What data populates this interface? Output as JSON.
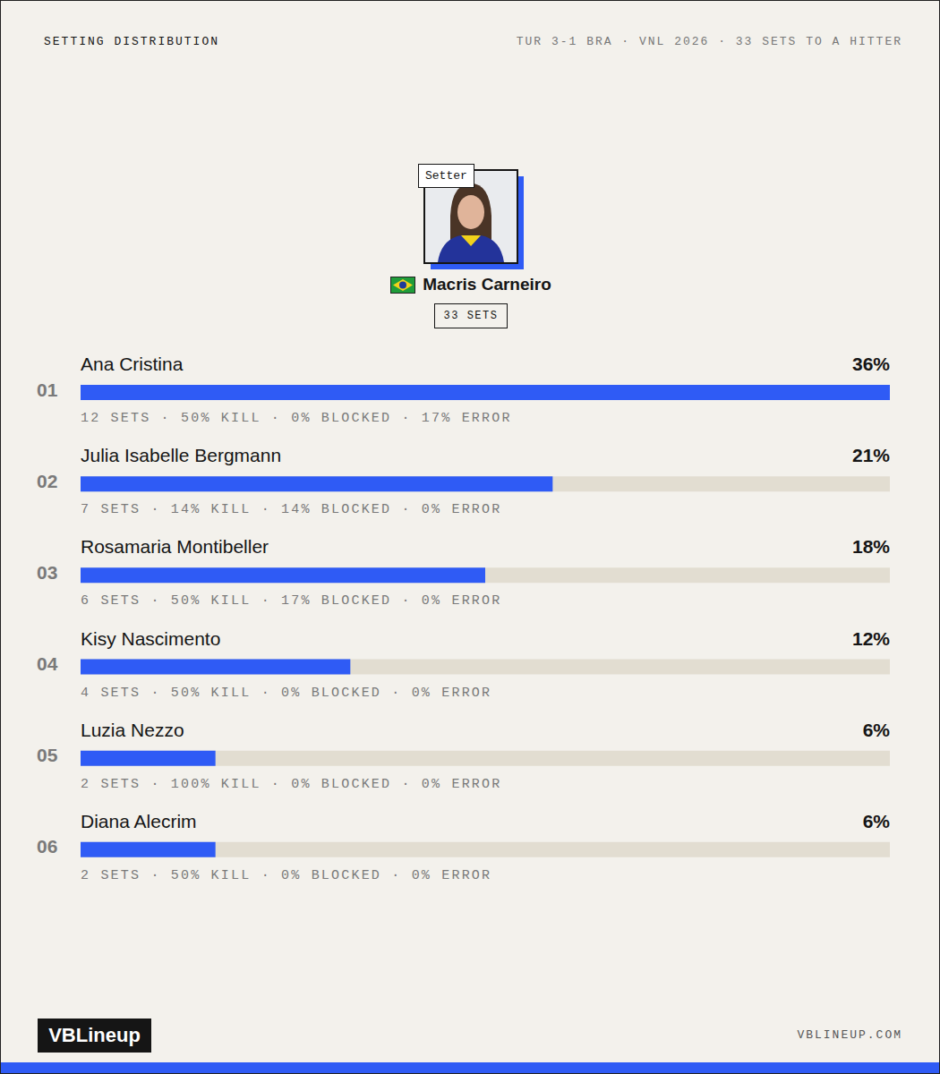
{
  "header": {
    "title": "SETTING DISTRIBUTION",
    "subtitle": "TUR 3-1 BRA · VNL 2026 · 33 SETS TO A HITTER"
  },
  "setter": {
    "badge": "Setter",
    "name": "Macris Carneiro",
    "total": "33 SETS"
  },
  "footer": {
    "brand": "VBLineup",
    "url": "VBLINEUP.COM"
  },
  "chart_data": {
    "type": "bar",
    "orientation": "horizontal",
    "categories": [
      "Ana Cristina",
      "Julia Isabelle Bergmann",
      "Rosamaria Montibeller",
      "Kisy Nascimento",
      "Luzia Nezzo",
      "Diana Alecrim"
    ],
    "ranks": [
      "01",
      "02",
      "03",
      "04",
      "05",
      "06"
    ],
    "values": [
      36,
      21,
      18,
      12,
      6,
      6
    ],
    "value_labels": [
      "36%",
      "21%",
      "18%",
      "12%",
      "6%",
      "6%"
    ],
    "stats": [
      "12 SETS · 50% KILL · 0% BLOCKED · 17% ERROR",
      "7 SETS · 14% KILL · 14% BLOCKED · 0% ERROR",
      "6 SETS · 50% KILL · 17% BLOCKED · 0% ERROR",
      "4 SETS · 50% KILL · 0% BLOCKED · 0% ERROR",
      "2 SETS · 100% KILL · 0% BLOCKED · 0% ERROR",
      "2 SETS · 50% KILL · 0% BLOCKED · 0% ERROR"
    ],
    "xlim": [
      0,
      36
    ],
    "color": "#2f5bf5",
    "grid": false,
    "tick_labels": false,
    "data_labels": true
  }
}
